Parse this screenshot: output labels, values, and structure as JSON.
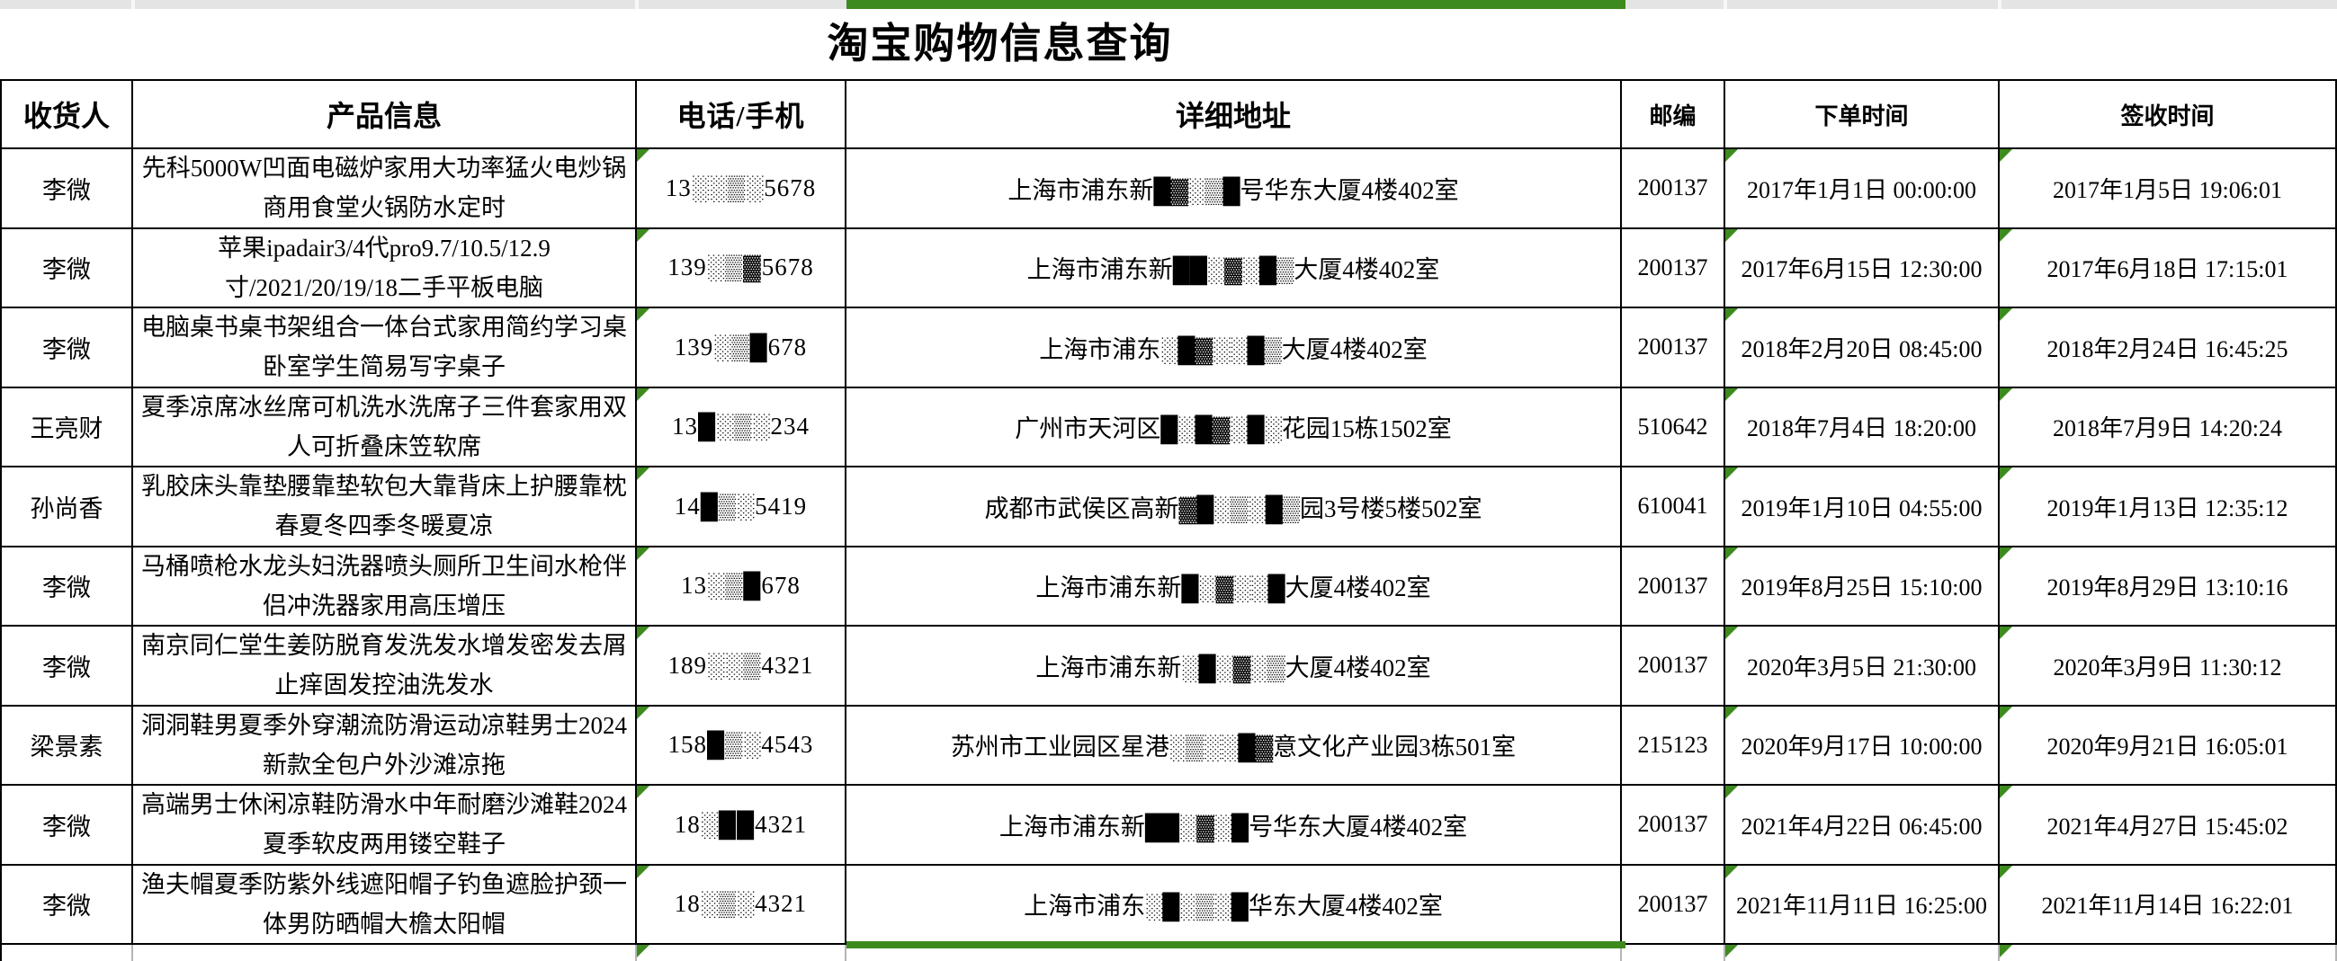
{
  "title": "淘宝购物信息查询",
  "columns": [
    {
      "key": "name",
      "label": "收货人"
    },
    {
      "key": "product",
      "label": "产品信息"
    },
    {
      "key": "phone",
      "label": "电话/手机"
    },
    {
      "key": "address",
      "label": "详细地址"
    },
    {
      "key": "postal",
      "label": "邮编"
    },
    {
      "key": "order_time",
      "label": "下单时间"
    },
    {
      "key": "sign_time",
      "label": "签收时间"
    }
  ],
  "rows": [
    {
      "name": "李微",
      "product": "先科5000W凹面电磁炉家用大功率猛火电炒锅商用食堂火锅防水定时",
      "phone": "13░░▒░5678",
      "address": "上海市浦东新█▓░▒█号华东大厦4楼402室",
      "postal": "200137",
      "order_time": "2017年1月1日 00:00:00",
      "sign_time": "2017年1月5日 19:06:01"
    },
    {
      "name": "李微",
      "product": "苹果ipadair3/4代pro9.7/10.5/12.9寸/2021/20/19/18二手平板电脑",
      "phone": "139░▒▓5678",
      "address": "上海市浦东新██░▓░█▒大厦4楼402室",
      "postal": "200137",
      "order_time": "2017年6月15日 12:30:00",
      "sign_time": "2017年6月18日 17:15:01"
    },
    {
      "name": "李微",
      "product": "电脑桌书桌书架组合一体台式家用简约学习桌卧室学生简易写字桌子",
      "phone": "139░▒█678",
      "address": "上海市浦东░█▓░░█▒大厦4楼402室",
      "postal": "200137",
      "order_time": "2018年2月20日 08:45:00",
      "sign_time": "2018年2月24日 16:45:25"
    },
    {
      "name": "王亮财",
      "product": "夏季凉席冰丝席可机洗水洗席子三件套家用双人可折叠床笠软席",
      "phone": "13█░▒░234",
      "address": "广州市天河区█░█▓░█░花园15栋1502室",
      "postal": "510642",
      "order_time": "2018年7月4日 18:20:00",
      "sign_time": "2018年7月9日 14:20:24"
    },
    {
      "name": "孙尚香",
      "product": "乳胶床头靠垫腰靠垫软包大靠背床上护腰靠枕春夏冬四季冬暖夏凉",
      "phone": "14█▒░5419",
      "address": "成都市武侯区高新▓█░▒░█▒园3号楼5楼502室",
      "postal": "610041",
      "order_time": "2019年1月10日 04:55:00",
      "sign_time": "2019年1月13日 12:35:12"
    },
    {
      "name": "李微",
      "product": "马桶喷枪水龙头妇洗器喷头厕所卫生间水枪伴侣冲洗器家用高压增压",
      "phone": "13░▒█678",
      "address": "上海市浦东新█░▓░░█大厦4楼402室",
      "postal": "200137",
      "order_time": "2019年8月25日 15:10:00",
      "sign_time": "2019年8月29日 13:10:16"
    },
    {
      "name": "李微",
      "product": "南京同仁堂生姜防脱育发洗发水增发密发去屑止痒固发控油洗发水",
      "phone": "189░░▒4321",
      "address": "上海市浦东新░█░▓░▒大厦4楼402室",
      "postal": "200137",
      "order_time": "2020年3月5日 21:30:00",
      "sign_time": "2020年3月9日 11:30:12"
    },
    {
      "name": "梁景素",
      "product": "洞洞鞋男夏季外穿潮流防滑运动凉鞋男士2024新款全包户外沙滩凉拖",
      "phone": "158█▒░4543",
      "address": "苏州市工业园区星港░▒░░█▓意文化产业园3栋501室",
      "postal": "215123",
      "order_time": "2020年9月17日 10:00:00",
      "sign_time": "2020年9月21日 16:05:01"
    },
    {
      "name": "李微",
      "product": "高端男士休闲凉鞋防滑水中年耐磨沙滩鞋2024夏季软皮两用镂空鞋子",
      "phone": "18░██4321",
      "address": "上海市浦东新██░▓░█号华东大厦4楼402室",
      "postal": "200137",
      "order_time": "2021年4月22日 06:45:00",
      "sign_time": "2021年4月27日 15:45:02"
    },
    {
      "name": "李微",
      "product": "渔夫帽夏季防紫外线遮阳帽子钓鱼遮脸护颈一体男防晒帽大檐太阳帽",
      "phone": "18░▒░4321",
      "address": "上海市浦东░█░▒░█华东大厦4楼402室",
      "postal": "200137",
      "order_time": "2021年11月11日 16:25:00",
      "sign_time": "2021年11月14日 16:22:01"
    }
  ],
  "markers": {
    "comment_marker_columns": [
      "phone",
      "order_time",
      "sign_time"
    ]
  },
  "colors": {
    "selection_green": "#3d8b1e",
    "strip_gray": "#e4e4e4",
    "grid_black": "#000000"
  }
}
